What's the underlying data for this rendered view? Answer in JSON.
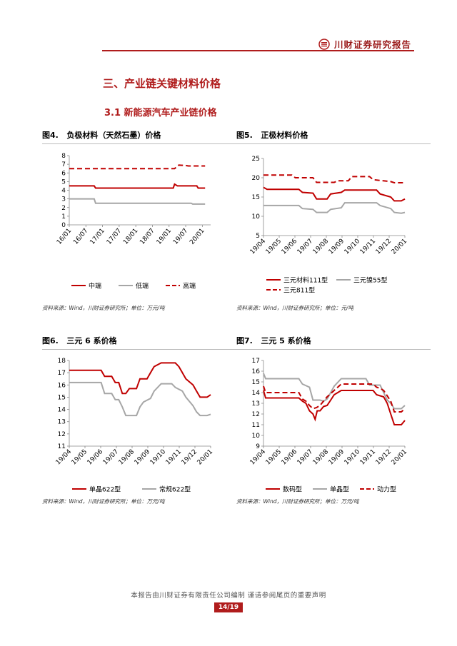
{
  "header": {
    "brand": "川财证券研究报告"
  },
  "section_title": "三、产业链关键材料价格",
  "subsection_title": "3.1 新能源汽车产业链价格",
  "footer": {
    "text": "本报告由川财证券有限责任公司编制 谨请参阅尾页的重要声明",
    "page": "14/19"
  },
  "colors": {
    "accent": "#b01c1c",
    "red": "#c00000",
    "gray": "#a6a6a6"
  },
  "chart_data": [
    {
      "id": "fig4",
      "type": "line",
      "title": "图4.   负极材料（天然石墨）价格",
      "source": "资料来源：Wind，川财证券研究所；单位：万元/吨",
      "xlabels": [
        "16/01",
        "16/07",
        "17/01",
        "17/07",
        "18/01",
        "18/07",
        "19/01",
        "19/07",
        "20/01"
      ],
      "x": [
        0,
        6,
        12,
        18,
        24,
        30,
        36,
        42,
        48,
        51
      ],
      "ylim": [
        0,
        8
      ],
      "yticks": [
        0,
        1,
        2,
        3,
        4,
        5,
        6,
        7,
        8
      ],
      "legend_cols": 3,
      "series": [
        {
          "name": "中端",
          "color": "#c00000",
          "dash": false,
          "points": [
            [
              0,
              4.5
            ],
            [
              9,
              4.5
            ],
            [
              9.5,
              4.25
            ],
            [
              37.5,
              4.25
            ],
            [
              38,
              4.7
            ],
            [
              39,
              4.5
            ],
            [
              46,
              4.5
            ],
            [
              46.5,
              4.25
            ],
            [
              49,
              4.25
            ]
          ]
        },
        {
          "name": "低端",
          "color": "#a6a6a6",
          "dash": false,
          "points": [
            [
              0,
              3.0
            ],
            [
              9,
              3.0
            ],
            [
              9.5,
              2.5
            ],
            [
              44,
              2.5
            ],
            [
              44.5,
              2.4
            ],
            [
              49,
              2.4
            ]
          ]
        },
        {
          "name": "高端",
          "color": "#c00000",
          "dash": true,
          "points": [
            [
              0,
              6.5
            ],
            [
              37.5,
              6.5
            ],
            [
              38,
              6.5
            ],
            [
              39.5,
              6.9
            ],
            [
              42,
              6.85
            ],
            [
              43,
              6.8
            ],
            [
              49,
              6.8
            ]
          ]
        }
      ]
    },
    {
      "id": "fig5",
      "type": "line",
      "title": "图5.   正极材料价格",
      "source": "资料来源：Wind，川财证券研究所；单位：元/吨",
      "xlabels": [
        "19/04",
        "19/05",
        "19/06",
        "19/07",
        "19/08",
        "19/09",
        "19/10",
        "19/11",
        "19/12",
        "20/01"
      ],
      "x": [
        0,
        20
      ],
      "ylim": [
        5,
        25
      ],
      "yticks": [
        5,
        10,
        15,
        20,
        25
      ],
      "legend_cols": 2,
      "series": [
        {
          "name": "三元材料111型",
          "color": "#c00000",
          "dash": false,
          "points": [
            [
              0,
              17.5
            ],
            [
              0.5,
              17
            ],
            [
              5,
              17
            ],
            [
              5.5,
              16.2
            ],
            [
              7,
              16
            ],
            [
              7.5,
              14.5
            ],
            [
              9,
              14.5
            ],
            [
              9.5,
              15.8
            ],
            [
              11,
              16.2
            ],
            [
              11.5,
              16.8
            ],
            [
              16,
              16.8
            ],
            [
              16.5,
              15.8
            ],
            [
              18,
              15
            ],
            [
              18.5,
              14
            ],
            [
              19.5,
              14
            ],
            [
              20,
              14.5
            ]
          ]
        },
        {
          "name": "三元镍55型",
          "color": "#a6a6a6",
          "dash": false,
          "points": [
            [
              0,
              12.8
            ],
            [
              5,
              12.8
            ],
            [
              5.5,
              12
            ],
            [
              7,
              11.8
            ],
            [
              7.5,
              11
            ],
            [
              9,
              11
            ],
            [
              9.5,
              11.8
            ],
            [
              11,
              12.2
            ],
            [
              11.5,
              13.5
            ],
            [
              16,
              13.5
            ],
            [
              16.5,
              12.8
            ],
            [
              18,
              12
            ],
            [
              18.5,
              11
            ],
            [
              19.5,
              10.8
            ],
            [
              20,
              11
            ]
          ]
        },
        {
          "name": "三元811型",
          "color": "#c00000",
          "dash": true,
          "points": [
            [
              0,
              20.7
            ],
            [
              4,
              20.7
            ],
            [
              4.5,
              20
            ],
            [
              7,
              20
            ],
            [
              7.5,
              18.8
            ],
            [
              10,
              18.8
            ],
            [
              10.5,
              19.2
            ],
            [
              12,
              19.2
            ],
            [
              12.5,
              20.3
            ],
            [
              15,
              20.3
            ],
            [
              15.5,
              19.5
            ],
            [
              18,
              19
            ],
            [
              18.5,
              18.7
            ],
            [
              20,
              18.7
            ]
          ]
        }
      ]
    },
    {
      "id": "fig6",
      "type": "line",
      "title": "图6.   三元 6 系价格",
      "source": "资料来源：Wind，川财证券研究所；单位：万元/吨",
      "xlabels": [
        "19/04",
        "19/05",
        "19/06",
        "19/07",
        "19/08",
        "19/09",
        "19/10",
        "19/11",
        "19/12",
        "20/01"
      ],
      "x": [
        0,
        20
      ],
      "ylim": [
        11,
        18
      ],
      "yticks": [
        11,
        12,
        13,
        14,
        15,
        16,
        17,
        18
      ],
      "legend_cols": 2,
      "series": [
        {
          "name": "单晶622型",
          "color": "#c00000",
          "dash": false,
          "points": [
            [
              0,
              17.2
            ],
            [
              4.5,
              17.2
            ],
            [
              5,
              16.7
            ],
            [
              6,
              16.7
            ],
            [
              6.5,
              16.2
            ],
            [
              7,
              16.2
            ],
            [
              7.5,
              15.3
            ],
            [
              8,
              15.3
            ],
            [
              8.5,
              15.7
            ],
            [
              9.5,
              15.7
            ],
            [
              10,
              16.5
            ],
            [
              11,
              16.5
            ],
            [
              11.5,
              17
            ],
            [
              12,
              17.5
            ],
            [
              13,
              17.8
            ],
            [
              15,
              17.8
            ],
            [
              15.5,
              17.5
            ],
            [
              16,
              17
            ],
            [
              16.5,
              16.5
            ],
            [
              17.5,
              16
            ],
            [
              18,
              15.5
            ],
            [
              18.5,
              15
            ],
            [
              19.5,
              15
            ],
            [
              20,
              15.2
            ]
          ]
        },
        {
          "name": "常规622型",
          "color": "#a6a6a6",
          "dash": false,
          "points": [
            [
              0,
              16.2
            ],
            [
              4.5,
              16.2
            ],
            [
              5,
              15.3
            ],
            [
              6,
              15.3
            ],
            [
              6.5,
              14.8
            ],
            [
              7,
              14.8
            ],
            [
              7.5,
              14.2
            ],
            [
              8,
              13.5
            ],
            [
              9.5,
              13.5
            ],
            [
              10,
              14.2
            ],
            [
              10.5,
              14.6
            ],
            [
              11.5,
              14.9
            ],
            [
              12,
              15.5
            ],
            [
              13,
              16.1
            ],
            [
              14.5,
              16.1
            ],
            [
              15,
              15.8
            ],
            [
              16,
              15.5
            ],
            [
              16.5,
              15
            ],
            [
              17.5,
              14.3
            ],
            [
              18,
              13.8
            ],
            [
              18.5,
              13.5
            ],
            [
              19.5,
              13.5
            ],
            [
              20,
              13.6
            ]
          ]
        }
      ]
    },
    {
      "id": "fig7",
      "type": "line",
      "title": "图7.   三元 5 系价格",
      "source": "资料来源：Wind，川财证券研究所；单位：万元/吨",
      "xlabels": [
        "19/04",
        "19/05",
        "19/06",
        "19/07",
        "19/08",
        "19/09",
        "19/10",
        "19/11",
        "19/12",
        "20/01"
      ],
      "x": [
        0,
        20
      ],
      "ylim": [
        9,
        17
      ],
      "yticks": [
        9,
        10,
        11,
        12,
        13,
        14,
        15,
        16,
        17
      ],
      "legend_cols": 3,
      "series": [
        {
          "name": "数码型",
          "color": "#c00000",
          "dash": false,
          "points": [
            [
              0,
              14.2
            ],
            [
              0.3,
              13.5
            ],
            [
              5,
              13.5
            ],
            [
              5.5,
              13.2
            ],
            [
              6,
              13
            ],
            [
              6.5,
              12.3
            ],
            [
              7,
              12
            ],
            [
              7.3,
              11.5
            ],
            [
              7.6,
              12.3
            ],
            [
              8,
              12.3
            ],
            [
              8.5,
              12.7
            ],
            [
              9,
              12.8
            ],
            [
              9.5,
              13.3
            ],
            [
              10,
              13.8
            ],
            [
              11,
              14.2
            ],
            [
              15.5,
              14.2
            ],
            [
              16,
              13.8
            ],
            [
              17,
              13.6
            ],
            [
              17.5,
              13
            ],
            [
              18,
              12
            ],
            [
              18.5,
              11
            ],
            [
              19.5,
              11
            ],
            [
              20,
              11.4
            ]
          ]
        },
        {
          "name": "单晶型",
          "color": "#a6a6a6",
          "dash": false,
          "points": [
            [
              0,
              15.8
            ],
            [
              0.3,
              15.3
            ],
            [
              5,
              15.3
            ],
            [
              5.5,
              14.8
            ],
            [
              6.5,
              14.5
            ],
            [
              7,
              13.3
            ],
            [
              8,
              13.3
            ],
            [
              8.5,
              13.2
            ],
            [
              9,
              13.4
            ],
            [
              9.5,
              14
            ],
            [
              10,
              14.6
            ],
            [
              11,
              15.3
            ],
            [
              14.5,
              15.3
            ],
            [
              15,
              14.7
            ],
            [
              16.5,
              14.7
            ],
            [
              17,
              14
            ],
            [
              17.5,
              13.3
            ],
            [
              18,
              13
            ],
            [
              18.5,
              12.5
            ],
            [
              19.5,
              12.5
            ],
            [
              20,
              12.8
            ]
          ]
        },
        {
          "name": "动力型",
          "color": "#c00000",
          "dash": true,
          "points": [
            [
              0,
              14.6
            ],
            [
              0.3,
              14
            ],
            [
              5,
              14
            ],
            [
              5.5,
              13.4
            ],
            [
              6,
              13.2
            ],
            [
              6.5,
              12.8
            ],
            [
              7,
              12.5
            ],
            [
              7.5,
              12.6
            ],
            [
              8,
              12.8
            ],
            [
              8.5,
              13.2
            ],
            [
              9,
              13.6
            ],
            [
              10,
              14.2
            ],
            [
              11,
              14.8
            ],
            [
              15.5,
              14.8
            ],
            [
              16,
              14.5
            ],
            [
              16.5,
              14.4
            ],
            [
              17,
              14.2
            ],
            [
              18,
              13.2
            ],
            [
              18.5,
              12.2
            ],
            [
              19.5,
              12.2
            ],
            [
              20,
              12.5
            ]
          ]
        }
      ]
    }
  ]
}
